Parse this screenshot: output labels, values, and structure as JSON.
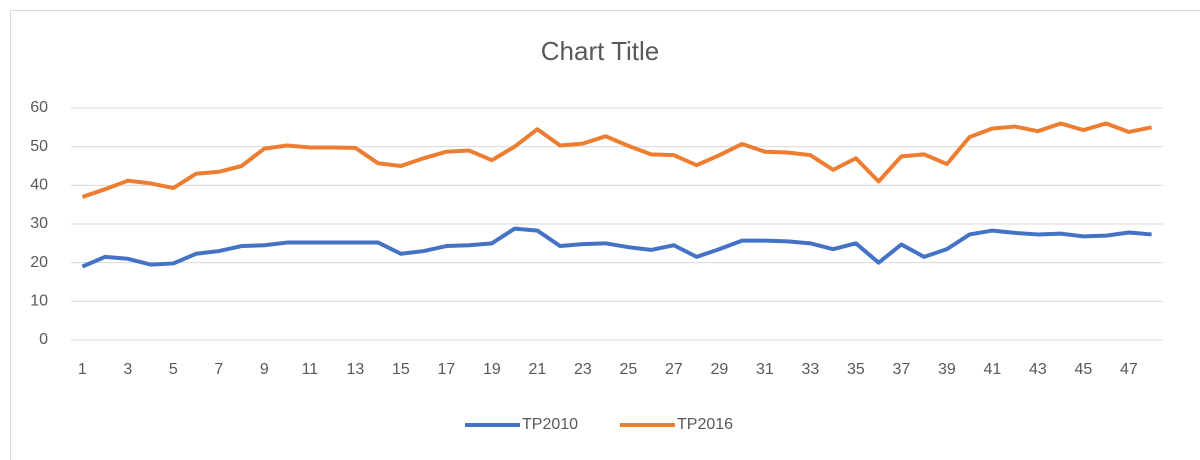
{
  "chart_data": {
    "type": "line",
    "title": "Chart Title",
    "categories": [
      1,
      null,
      3,
      null,
      5,
      null,
      7,
      null,
      9,
      null,
      11,
      null,
      13,
      null,
      15,
      null,
      17,
      null,
      19,
      null,
      21,
      null,
      23,
      null,
      25,
      null,
      27,
      null,
      29,
      null,
      31,
      null,
      33,
      null,
      35,
      null,
      37,
      null,
      39,
      null,
      41,
      null,
      43,
      null,
      45,
      null,
      47,
      null
    ],
    "series": [
      {
        "name": "TP2010",
        "color": "#4472c4",
        "values": [
          19,
          21.5,
          21,
          19.5,
          19.8,
          22.3,
          23,
          24.3,
          24.5,
          25.2,
          25.2,
          25.2,
          25.2,
          25.2,
          22.3,
          23,
          24.3,
          24.5,
          25,
          28.8,
          28.3,
          24.3,
          24.8,
          25,
          24,
          23.3,
          24.5,
          21.5,
          23.5,
          25.7,
          25.7,
          25.5,
          25,
          23.5,
          25,
          20,
          24.7,
          21.5,
          23.5,
          27.3,
          28.3,
          27.7,
          27.3,
          27.5,
          26.8,
          27,
          27.8,
          27.3
        ]
      },
      {
        "name": "TP2016",
        "color": "#ed7d31",
        "values": [
          37,
          39,
          41.2,
          40.5,
          39.3,
          43,
          43.5,
          45,
          49.5,
          50.3,
          49.8,
          49.8,
          49.7,
          45.7,
          45,
          47,
          48.7,
          49,
          46.5,
          50,
          54.5,
          50.3,
          50.8,
          52.7,
          50.2,
          48,
          47.8,
          45.2,
          47.8,
          50.7,
          48.7,
          48.5,
          47.8,
          44,
          47,
          41,
          47.5,
          48,
          45.5,
          52.5,
          54.7,
          55.2,
          54,
          56,
          54.3,
          56,
          53.8,
          55
        ]
      }
    ],
    "ylim": [
      0,
      60
    ],
    "yticks": [
      0,
      10,
      20,
      30,
      40,
      50,
      60
    ],
    "grid": true,
    "legend": "bottom"
  }
}
